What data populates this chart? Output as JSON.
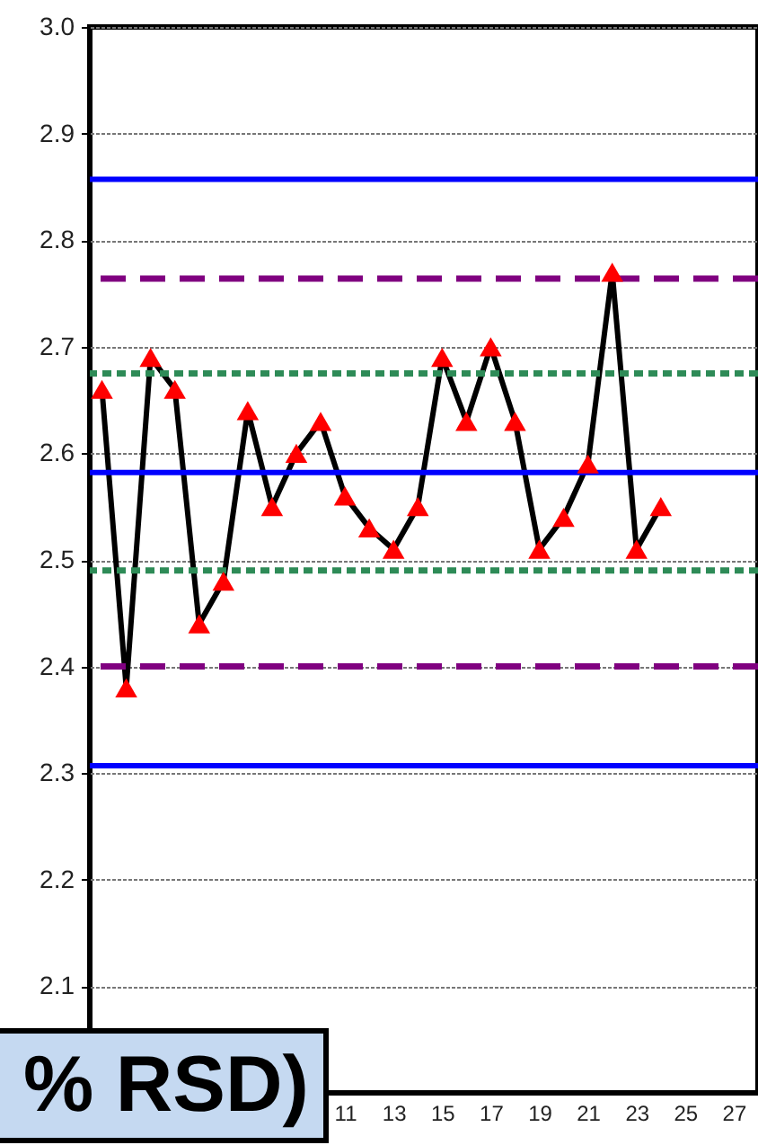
{
  "chart_data": {
    "type": "line",
    "x": [
      1,
      2,
      3,
      4,
      5,
      6,
      7,
      8,
      9,
      10,
      11,
      12,
      13,
      14,
      15,
      16,
      17,
      18,
      19,
      20,
      21,
      22,
      23,
      24
    ],
    "series": [
      {
        "color": "#000000",
        "colors": [
          "#ff0000",
          "#ff0000",
          "#ff0000",
          "#ff0000",
          "#ff0000",
          "#ff0000",
          "#ff0000",
          "#ff0000",
          "#ff0000",
          "#ff0000",
          "#ff0000",
          "#ff0000",
          "#ff0000",
          "#ff0000",
          "#ff0000",
          "#ff0000",
          "#ff0000",
          "#ff0000",
          "#ff0000",
          "#ff0000",
          "#ff0000",
          "#ff0000",
          "#ff0000",
          "#ff0000"
        ],
        "values": [
          2.66,
          2.38,
          2.69,
          2.66,
          2.44,
          2.48,
          2.64,
          2.55,
          2.6,
          2.63,
          2.56,
          2.53,
          2.51,
          2.55,
          2.69,
          2.63,
          2.7,
          2.63,
          2.51,
          2.54,
          2.59,
          2.77,
          2.51,
          2.55
        ]
      }
    ],
    "xlim": [
      0.5,
      28
    ],
    "xticks": [
      11,
      13,
      15,
      17,
      19,
      21,
      23,
      25,
      27
    ],
    "ylim": [
      2.0,
      3.0
    ],
    "yticks": [
      2.1,
      2.2,
      2.3,
      2.4,
      2.5,
      2.6,
      2.7,
      2.8,
      2.9,
      {
        "value": 3,
        "label": "3.0"
      }
    ],
    "ref_lines": [
      {
        "axis": "y",
        "value": 2.857,
        "color": "#0000ff",
        "line_style": "solid"
      },
      {
        "axis": "y",
        "value": 2.764,
        "color": "#800080",
        "line_style": "dashed"
      },
      {
        "axis": "y",
        "value": 2.675,
        "color": "#2e8b57",
        "line_style": "dotted"
      },
      {
        "axis": "y",
        "value": 2.582,
        "color": "#0000ff",
        "line_style": "solid"
      },
      {
        "axis": "y",
        "value": 2.49,
        "color": "#2e8b57",
        "line_style": "dotted"
      },
      {
        "axis": "y",
        "value": 2.4,
        "color": "#800080",
        "line_style": "dashed"
      },
      {
        "axis": "y",
        "value": 2.307,
        "color": "#0000ff",
        "line_style": "solid"
      }
    ],
    "annotations": [
      "% RSD)"
    ],
    "grid": "y",
    "marker": "triangle",
    "line_style": "solid"
  }
}
